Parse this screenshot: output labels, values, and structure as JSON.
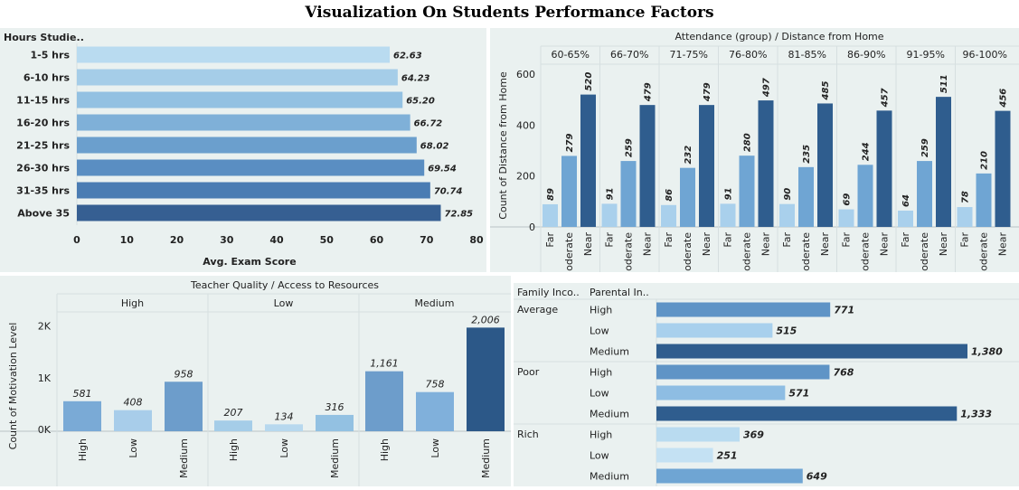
{
  "title": "Visualization On Students Performance Factors",
  "chart_data": [
    {
      "type": "bar",
      "orientation": "horizontal",
      "row_header": "Hours Studie..",
      "categories": [
        "1-5 hrs",
        "6-10 hrs",
        "11-15 hrs",
        "16-20 hrs",
        "21-25 hrs",
        "26-30 hrs",
        "31-35 hrs",
        "Above 35"
      ],
      "values": [
        62.63,
        64.23,
        65.2,
        66.72,
        68.02,
        69.54,
        70.74,
        72.85
      ],
      "labels": [
        "62.63",
        "64.23",
        "65.20",
        "66.72",
        "68.02",
        "69.54",
        "70.74",
        "72.85"
      ],
      "xlabel": "Avg. Exam Score",
      "xlim": [
        0,
        80
      ],
      "ticks": [
        "0",
        "10",
        "20",
        "30",
        "40",
        "50",
        "60",
        "70",
        "80"
      ],
      "colors": [
        "#b9dbf0",
        "#a5cde8",
        "#93c1e2",
        "#7fb0d8",
        "#6b9fcd",
        "#5a8ec2",
        "#4a7cb3",
        "#365f92"
      ]
    },
    {
      "type": "bar",
      "header": "Attendance (group)  /  Distance from Home",
      "ylabel": "Count of Distance from Home",
      "ylim": [
        0,
        650
      ],
      "ticks": [
        "0",
        "200",
        "400",
        "600"
      ],
      "subcategories": [
        "Far",
        "Moderate",
        "Near"
      ],
      "groups": [
        {
          "name": "60-65%",
          "values": [
            89,
            279,
            520
          ]
        },
        {
          "name": "66-70%",
          "values": [
            91,
            259,
            479
          ]
        },
        {
          "name": "71-75%",
          "values": [
            86,
            232,
            479
          ]
        },
        {
          "name": "76-80%",
          "values": [
            91,
            280,
            497
          ]
        },
        {
          "name": "81-85%",
          "values": [
            90,
            235,
            485
          ]
        },
        {
          "name": "86-90%",
          "values": [
            69,
            244,
            457
          ]
        },
        {
          "name": "91-95%",
          "values": [
            64,
            259,
            511
          ]
        },
        {
          "name": "96-100%",
          "values": [
            78,
            210,
            456
          ]
        }
      ]
    },
    {
      "type": "bar",
      "header": "Teacher Quality  /  Access to Resources",
      "ylabel": "Count of Motivation Level",
      "ylim": [
        0,
        2100
      ],
      "ticks": [
        "0K",
        "1K",
        "2K"
      ],
      "subcategories": [
        "High",
        "Low",
        "Medium"
      ],
      "groups": [
        {
          "name": "High",
          "values": [
            581,
            408,
            958
          ],
          "labels": [
            "581",
            "408",
            "958"
          ]
        },
        {
          "name": "Low",
          "values": [
            207,
            134,
            316
          ],
          "labels": [
            "207",
            "134",
            "316"
          ]
        },
        {
          "name": "Medium",
          "values": [
            1161,
            758,
            2006
          ],
          "labels": [
            "1,161",
            "758",
            "2,006"
          ]
        }
      ]
    },
    {
      "type": "bar",
      "orientation": "horizontal",
      "row_headers": [
        "Family Inco..",
        "Parental In.."
      ],
      "xlim": [
        0,
        1380
      ],
      "groups": [
        {
          "name": "Average",
          "rows": [
            {
              "name": "High",
              "value": 771,
              "label": "771"
            },
            {
              "name": "Low",
              "value": 515,
              "label": "515"
            },
            {
              "name": "Medium",
              "value": 1380,
              "label": "1,380"
            }
          ]
        },
        {
          "name": "Poor",
          "rows": [
            {
              "name": "High",
              "value": 768,
              "label": "768"
            },
            {
              "name": "Low",
              "value": 571,
              "label": "571"
            },
            {
              "name": "Medium",
              "value": 1333,
              "label": "1,333"
            }
          ]
        },
        {
          "name": "Rich",
          "rows": [
            {
              "name": "High",
              "value": 369,
              "label": "369"
            },
            {
              "name": "Low",
              "value": 251,
              "label": "251"
            },
            {
              "name": "Medium",
              "value": 649,
              "label": "649"
            }
          ]
        }
      ]
    }
  ]
}
